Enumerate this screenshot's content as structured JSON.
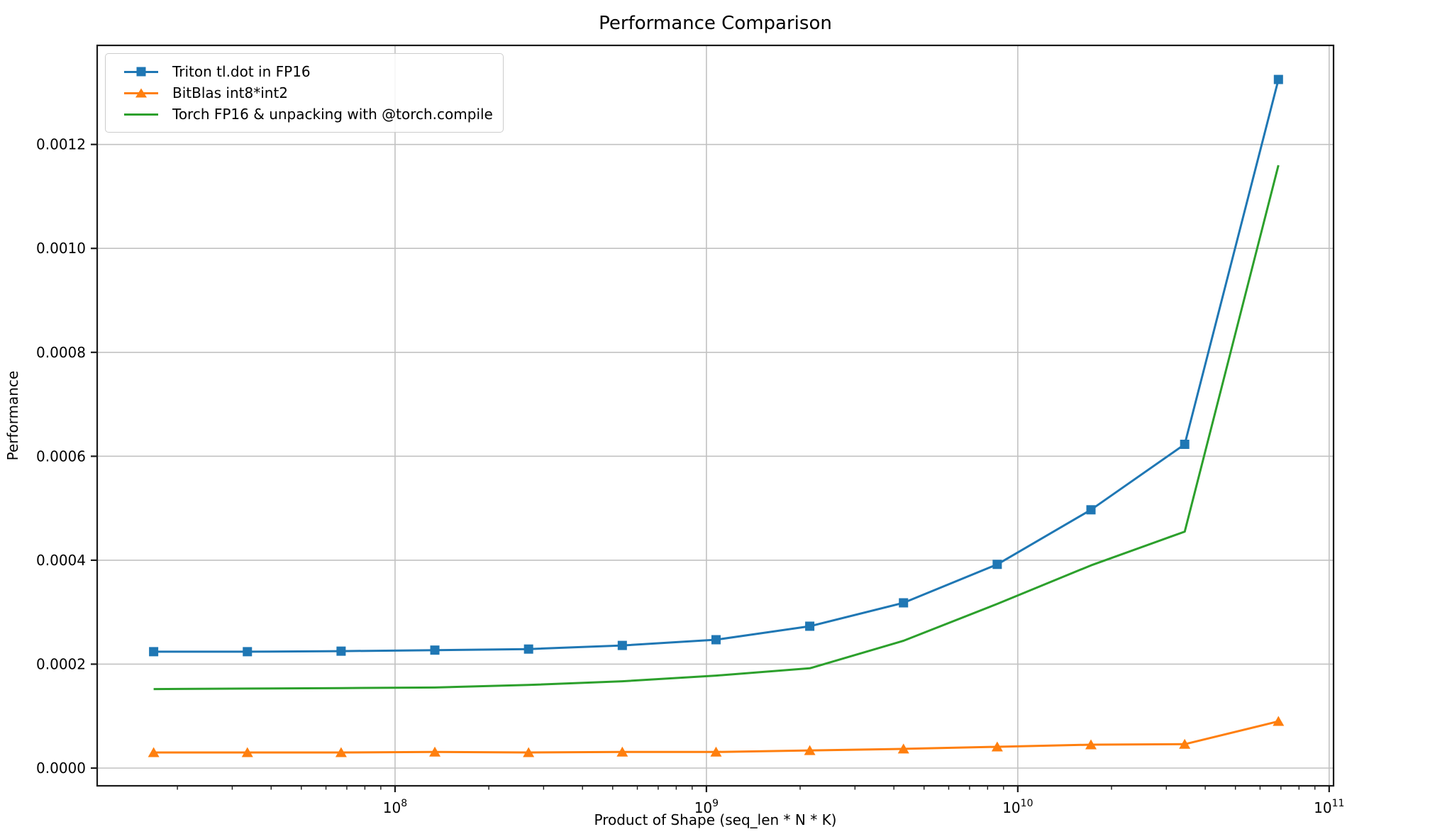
{
  "chart_data": {
    "type": "line",
    "title": "Performance Comparison",
    "xlabel": "Product of Shape (seq_len * N * K)",
    "ylabel": "Performance",
    "x_scale": "log",
    "grid": true,
    "legend_position": "upper-left",
    "xlim": [
      11050000,
      103300000000
    ],
    "ylim": [
      -3.41e-05,
      0.0013906
    ],
    "x_ticks": [
      {
        "base": "10",
        "exp": "8",
        "value": 100000000
      },
      {
        "base": "10",
        "exp": "9",
        "value": 1000000000
      },
      {
        "base": "10",
        "exp": "10",
        "value": 10000000000
      },
      {
        "base": "10",
        "exp": "11",
        "value": 100000000000
      }
    ],
    "y_ticks": [
      {
        "label": "0.0000",
        "value": 0.0
      },
      {
        "label": "0.0002",
        "value": 0.0002
      },
      {
        "label": "0.0004",
        "value": 0.0004
      },
      {
        "label": "0.0006",
        "value": 0.0006
      },
      {
        "label": "0.0008",
        "value": 0.0008
      },
      {
        "label": "0.0010",
        "value": 0.001
      },
      {
        "label": "0.0012",
        "value": 0.0012
      }
    ],
    "x": [
      16777216,
      33554432,
      67108864,
      134217728,
      268435456,
      536870912,
      1073741824,
      2147483648,
      4294967296,
      8589934592,
      17179869184,
      34359738368,
      68719476736
    ],
    "series": [
      {
        "name": "Triton tl.dot in FP16",
        "color": "#1f77b4",
        "marker": "square",
        "values": [
          0.000224,
          0.000224,
          0.000225,
          0.000227,
          0.000229,
          0.000236,
          0.000247,
          0.000273,
          0.000318,
          0.000392,
          0.000497,
          0.000623,
          0.001325
        ]
      },
      {
        "name": "BitBlas int8*int2",
        "color": "#ff7f0e",
        "marker": "triangle",
        "values": [
          3e-05,
          3e-05,
          3e-05,
          3.1e-05,
          3e-05,
          3.1e-05,
          3.1e-05,
          3.4e-05,
          3.7e-05,
          4.1e-05,
          4.5e-05,
          4.6e-05,
          9e-05
        ]
      },
      {
        "name": "Torch FP16 & unpacking with @torch.compile",
        "color": "#2ca02c",
        "marker": "none",
        "values": [
          0.000152,
          0.000153,
          0.000154,
          0.000155,
          0.00016,
          0.000167,
          0.000178,
          0.000192,
          0.000245,
          0.000316,
          0.00039,
          0.000455,
          0.00116
        ]
      }
    ],
    "style": {
      "grid_color": "#c2c2c2",
      "spine_color": "#1a1a1a",
      "tick_color": "#1a1a1a"
    }
  }
}
